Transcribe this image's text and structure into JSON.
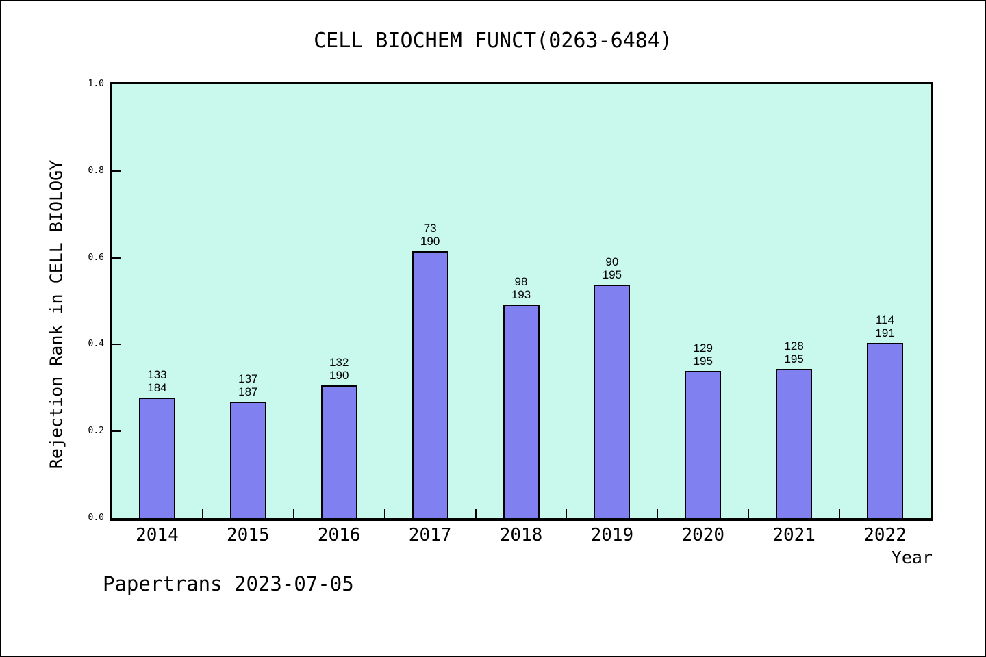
{
  "title": "CELL BIOCHEM FUNCT(0263-6484)",
  "watermark": "Papertrans 2023-07-05",
  "chart_data": {
    "type": "bar",
    "title": "CELL BIOCHEM FUNCT(0263-6484)",
    "xlabel": "Year",
    "ylabel": "Rejection Rank in CELL BIOLOGY",
    "ylim": [
      0.0,
      1.0
    ],
    "ytick_values": [
      0.0,
      0.2,
      0.4,
      0.6,
      0.8,
      1.0
    ],
    "ytick_labels": [
      "0.0",
      "0.2",
      "0.4",
      "0.6",
      "0.8",
      "1.0"
    ],
    "grid": "off",
    "legend": "none",
    "categories": [
      "2014",
      "2015",
      "2016",
      "2017",
      "2018",
      "2019",
      "2020",
      "2021",
      "2022"
    ],
    "values": [
      0.2772,
      0.2674,
      0.3053,
      0.6158,
      0.4922,
      0.5385,
      0.3385,
      0.3436,
      0.4031
    ],
    "bar_labels": [
      [
        "133",
        "184"
      ],
      [
        "137",
        "187"
      ],
      [
        "132",
        "190"
      ],
      [
        "73",
        "190"
      ],
      [
        "98",
        "193"
      ],
      [
        "90",
        "195"
      ],
      [
        "129",
        "195"
      ],
      [
        "128",
        "195"
      ],
      [
        "114",
        "191"
      ]
    ],
    "colors": {
      "bar_fill": "#8080f0",
      "bar_edge": "#000000",
      "plot_background": "#c9f9ec",
      "page_background": "#ffffff",
      "text": "#000000"
    }
  }
}
